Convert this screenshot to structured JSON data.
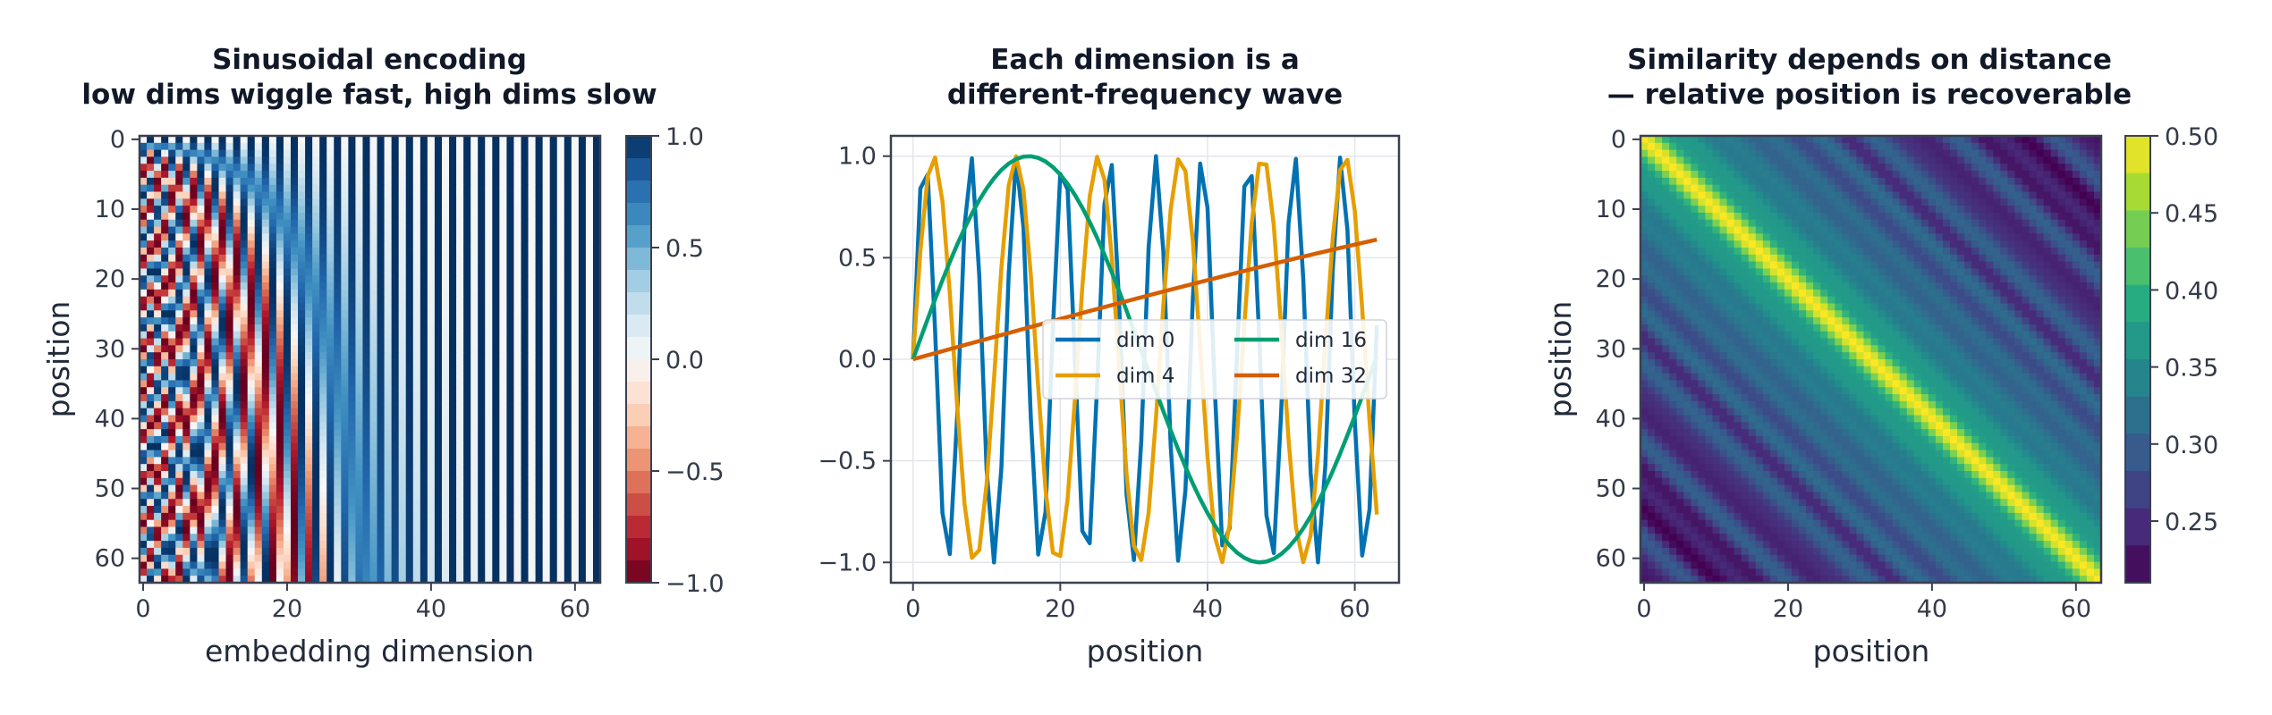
{
  "chart_data": [
    {
      "type": "heatmap",
      "title_line1": "Sinusoidal encoding",
      "title_line2": "low dims wiggle fast, high dims slow",
      "xlabel": "embedding dimension",
      "ylabel": "position",
      "n_positions": 64,
      "d_model": 64,
      "xticks": [
        0,
        20,
        40,
        60
      ],
      "yticks": [
        0,
        10,
        20,
        30,
        40,
        50,
        60
      ],
      "colormap": "RdBu",
      "colorbar": {
        "min": -1.0,
        "max": 1.0,
        "ticks": [
          "1.0",
          "0.5",
          "0.0",
          "−0.5",
          "−1.0"
        ],
        "tick_values": [
          1.0,
          0.5,
          0.0,
          -0.5,
          -1.0
        ]
      }
    },
    {
      "type": "line",
      "title_line1": "Each dimension is a",
      "title_line2": "different-frequency wave",
      "xlabel": "position",
      "ylabel": "",
      "x_range": [
        0,
        63
      ],
      "xlim": [
        -3,
        66
      ],
      "ylim": [
        -1.1,
        1.1
      ],
      "xticks": [
        0,
        20,
        40,
        60
      ],
      "yticks": [
        "1.0",
        "0.5",
        "0.0",
        "−0.5",
        "−1.0"
      ],
      "ytick_values": [
        1.0,
        0.5,
        0.0,
        -0.5,
        -1.0
      ],
      "grid": true,
      "legend_position": "center-right",
      "series": [
        {
          "name": "dim 0",
          "dim": 0,
          "color": "#0072b2"
        },
        {
          "name": "dim 4",
          "dim": 4,
          "color": "#e69f00"
        },
        {
          "name": "dim 16",
          "dim": 16,
          "color": "#009e73"
        },
        {
          "name": "dim 32",
          "dim": 32,
          "color": "#d55e00"
        }
      ]
    },
    {
      "type": "heatmap",
      "title_line1": "Similarity depends on distance",
      "title_line2": "— relative position is recoverable",
      "xlabel": "position",
      "ylabel": "position",
      "n_positions": 64,
      "xticks": [
        0,
        20,
        40,
        60
      ],
      "yticks": [
        0,
        10,
        20,
        30,
        40,
        50,
        60
      ],
      "colormap": "viridis",
      "colorbar": {
        "min": 0.21,
        "max": 0.5,
        "ticks": [
          "0.50",
          "0.45",
          "0.40",
          "0.35",
          "0.30",
          "0.25"
        ],
        "tick_values": [
          0.5,
          0.45,
          0.4,
          0.35,
          0.3,
          0.25
        ]
      }
    }
  ]
}
